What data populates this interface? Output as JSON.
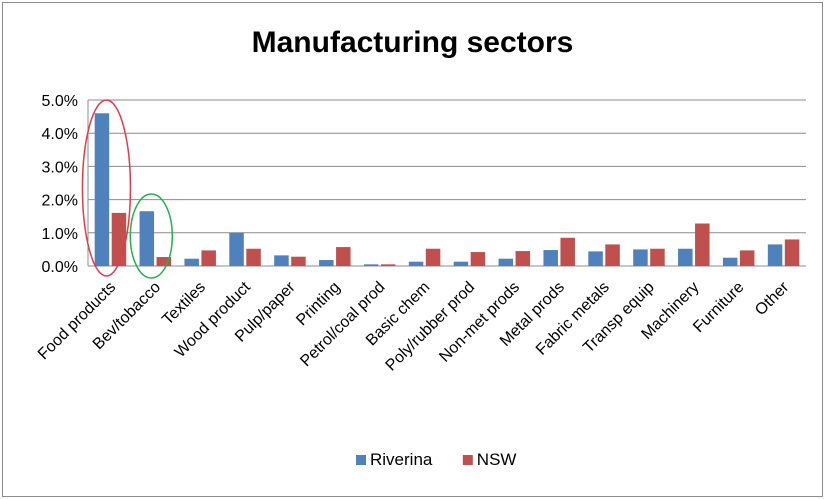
{
  "chart_data": {
    "type": "bar",
    "title": "Manufacturing sectors",
    "xlabel": "",
    "ylabel": "",
    "ylim": [
      0,
      5.0
    ],
    "yticks": [
      "0.0%",
      "1.0%",
      "2.0%",
      "3.0%",
      "4.0%",
      "5.0%"
    ],
    "categories": [
      "Food products",
      "Bev/tobacco",
      "Textiles",
      "Wood product",
      "Pulp/paper",
      "Printing",
      "Petrol/coal prod",
      "Basic chem",
      "Poly/rubber prod",
      "Non-met prods",
      "Metal prods",
      "Fabric metals",
      "Transp equip",
      "Machinery",
      "Furniture",
      "Other"
    ],
    "series": [
      {
        "name": "Riverina",
        "color": "#4f81bd",
        "values": [
          4.6,
          1.65,
          0.22,
          1.0,
          0.32,
          0.18,
          0.05,
          0.13,
          0.13,
          0.22,
          0.48,
          0.44,
          0.5,
          0.52,
          0.25,
          0.65
        ]
      },
      {
        "name": "NSW",
        "color": "#c0504d",
        "values": [
          1.6,
          0.27,
          0.47,
          0.52,
          0.28,
          0.57,
          0.05,
          0.52,
          0.42,
          0.45,
          0.85,
          0.65,
          0.52,
          1.28,
          0.47,
          0.8
        ]
      }
    ],
    "grid": true,
    "legend": "bottom",
    "annotations": [
      {
        "shape": "ellipse",
        "color": "#e8394a",
        "around": "Food products"
      },
      {
        "shape": "ellipse",
        "color": "#22b14c",
        "around": "Bev/tobacco"
      }
    ]
  }
}
